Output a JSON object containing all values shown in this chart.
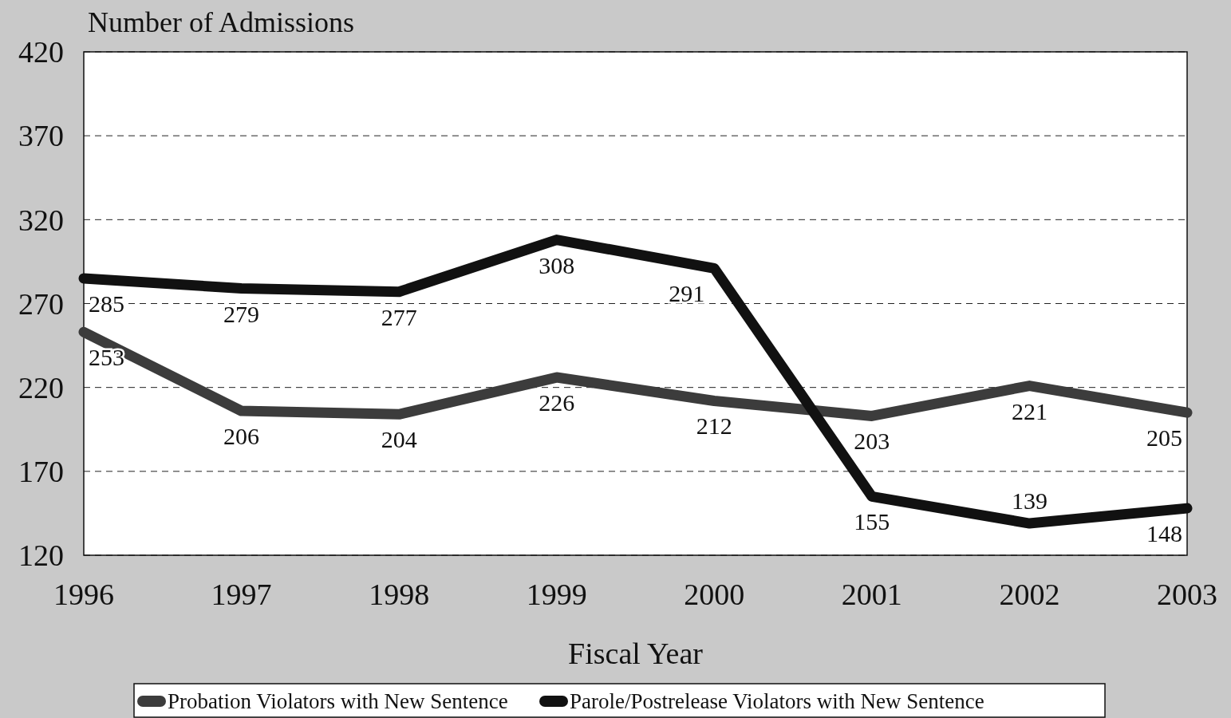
{
  "chart_data": {
    "type": "line",
    "ylabel": "Number of Admissions",
    "xlabel": "Fiscal Year",
    "categories": [
      "1996",
      "1997",
      "1998",
      "1999",
      "2000",
      "2001",
      "2002",
      "2003"
    ],
    "series": [
      {
        "name": "Probation Violators with New Sentence",
        "color": "#3c3c3c",
        "values": [
          253,
          206,
          204,
          226,
          212,
          203,
          221,
          205
        ]
      },
      {
        "name": "Parole/Postrelease Violators with New Sentence",
        "color": "#111111",
        "values": [
          285,
          279,
          277,
          308,
          291,
          155,
          139,
          148
        ]
      }
    ],
    "ylim": [
      120,
      420
    ],
    "yticks": [
      120,
      170,
      220,
      270,
      320,
      370,
      420
    ],
    "grid": "y",
    "legend": "bottom",
    "data_labels": true,
    "marker": "none",
    "line_style": "solid"
  }
}
